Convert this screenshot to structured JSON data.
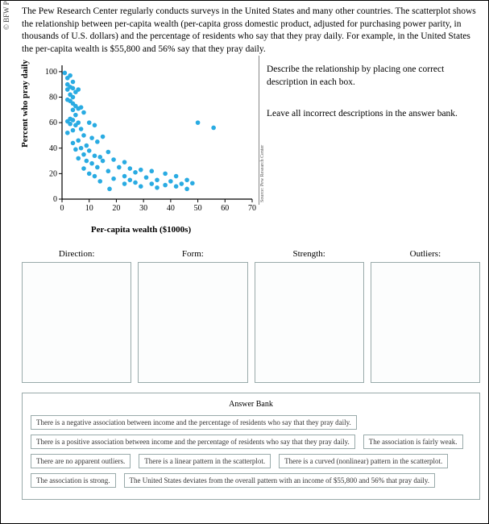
{
  "publisher_label": "© BFW Publishers",
  "intro_text": "The Pew Research Center regularly conducts surveys in the United States and many other countries. The scatterplot shows the relationship between per-capita wealth (per-capita gross domestic product, adjusted for purchasing power parity, in thousands of U.S. dollars) and the percentage of residents who say that they pray daily. For example, in the United States the per-capita wealth is $55,800 and 56% say that they pray daily.",
  "right_instr_1": "Describe the relationship by placing one correct description in each box.",
  "right_instr_2": "Leave all incorrect descriptions in the answer bank.",
  "chart": {
    "type": "scatter",
    "xlabel": "Per-capita wealth ($1000s)",
    "ylabel": "Percent who pray daily",
    "xlim": [
      0,
      70
    ],
    "ylim": [
      0,
      105
    ],
    "xticks": [
      0,
      10,
      20,
      30,
      40,
      50,
      60,
      70
    ],
    "yticks": [
      0,
      20,
      40,
      60,
      80,
      100
    ],
    "marker_color": "#29abe2",
    "marker_radius": 2.8,
    "axis_color": "#000000",
    "tick_fontsize": 10,
    "label_fontsize": 11,
    "points": [
      [
        1,
        99
      ],
      [
        2,
        95
      ],
      [
        2,
        90
      ],
      [
        2,
        86
      ],
      [
        2,
        78
      ],
      [
        2,
        61
      ],
      [
        2,
        52
      ],
      [
        3,
        97
      ],
      [
        3,
        88
      ],
      [
        3,
        82
      ],
      [
        3,
        77
      ],
      [
        3,
        63
      ],
      [
        3,
        59
      ],
      [
        4,
        92
      ],
      [
        4,
        87
      ],
      [
        4,
        80
      ],
      [
        4,
        75
      ],
      [
        4,
        70
      ],
      [
        4,
        62
      ],
      [
        4,
        54
      ],
      [
        4,
        44
      ],
      [
        5,
        84
      ],
      [
        5,
        73
      ],
      [
        5,
        66
      ],
      [
        5,
        58
      ],
      [
        5,
        39
      ],
      [
        6,
        86
      ],
      [
        6,
        71
      ],
      [
        6,
        60
      ],
      [
        6,
        46
      ],
      [
        6,
        32
      ],
      [
        7,
        72
      ],
      [
        7,
        55
      ],
      [
        7,
        40
      ],
      [
        8,
        68
      ],
      [
        8,
        50
      ],
      [
        8,
        35
      ],
      [
        8,
        24
      ],
      [
        9,
        42
      ],
      [
        9,
        30
      ],
      [
        10,
        60
      ],
      [
        10,
        38
      ],
      [
        10,
        20
      ],
      [
        11,
        48
      ],
      [
        11,
        28
      ],
      [
        12,
        58
      ],
      [
        12,
        34
      ],
      [
        12,
        18
      ],
      [
        13,
        45
      ],
      [
        13,
        25
      ],
      [
        14,
        33
      ],
      [
        14,
        14
      ],
      [
        15,
        49
      ],
      [
        15,
        30
      ],
      [
        17,
        37
      ],
      [
        17,
        22
      ],
      [
        17.5,
        8
      ],
      [
        19,
        31
      ],
      [
        19,
        16
      ],
      [
        21,
        25
      ],
      [
        23,
        29
      ],
      [
        23,
        18
      ],
      [
        23,
        12
      ],
      [
        25,
        24
      ],
      [
        25,
        15
      ],
      [
        27,
        21
      ],
      [
        27,
        13
      ],
      [
        29,
        23
      ],
      [
        29,
        10
      ],
      [
        31,
        17
      ],
      [
        33,
        22
      ],
      [
        33,
        12
      ],
      [
        35,
        15
      ],
      [
        35,
        9
      ],
      [
        38,
        20
      ],
      [
        38,
        11
      ],
      [
        40,
        14
      ],
      [
        42,
        18
      ],
      [
        42,
        10
      ],
      [
        44,
        12
      ],
      [
        46,
        15
      ],
      [
        46,
        8
      ],
      [
        48,
        12.5
      ],
      [
        50,
        60
      ],
      [
        55.8,
        56
      ]
    ]
  },
  "right_axis_note": "Source: Pew Research Center",
  "drop_zones": [
    {
      "label": "Direction:"
    },
    {
      "label": "Form:"
    },
    {
      "label": "Strength:"
    },
    {
      "label": "Outliers:"
    }
  ],
  "answer_bank_title": "Answer Bank",
  "answer_bank_rows": [
    [
      "There is a negative association between income and the percentage of residents who say that they pray daily."
    ],
    [
      "There is a positive association between income and the percentage of residents who say that they pray daily.",
      "The association is fairly weak."
    ],
    [
      "There are no apparent outliers.",
      "There is a linear pattern in the scatterplot.",
      "There is a curved (nonlinear) pattern in the scatterplot."
    ],
    [
      "The association is strong.",
      "The United States deviates from the overall pattern with an income of $55,800 and 56% that pray daily."
    ]
  ]
}
